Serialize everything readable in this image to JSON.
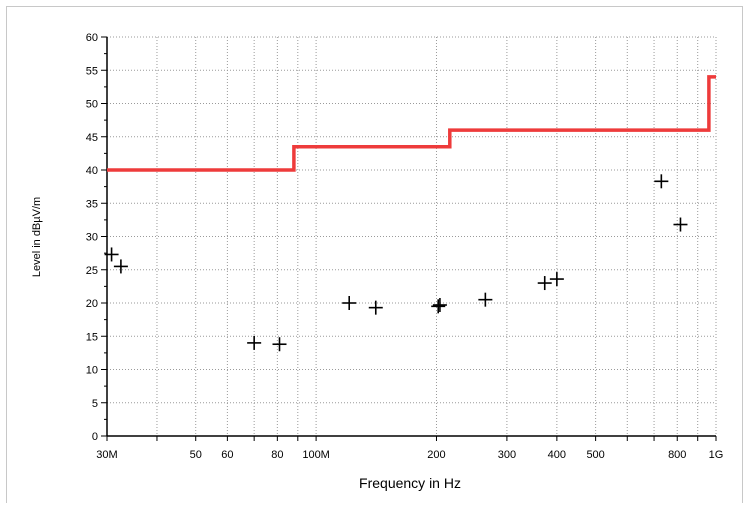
{
  "chart_data": {
    "type": "scatter",
    "title": "",
    "xlabel": "Frequency in Hz",
    "ylabel": "Level in dBµV/m",
    "x_scale": "log",
    "xlim": [
      30000000,
      1000000000
    ],
    "ylim": [
      0,
      60
    ],
    "grid": true,
    "x_tick_labels": [
      {
        "value": 30000000,
        "label": "30M"
      },
      {
        "value": 50000000,
        "label": "50"
      },
      {
        "value": 60000000,
        "label": "60"
      },
      {
        "value": 80000000,
        "label": "80"
      },
      {
        "value": 100000000,
        "label": "100M"
      },
      {
        "value": 200000000,
        "label": "200"
      },
      {
        "value": 300000000,
        "label": "300"
      },
      {
        "value": 400000000,
        "label": "400"
      },
      {
        "value": 500000000,
        "label": "500"
      },
      {
        "value": 800000000,
        "label": "800"
      },
      {
        "value": 1000000000,
        "label": "1G"
      }
    ],
    "y_tick_labels": [
      "0",
      "5",
      "10",
      "15",
      "20",
      "25",
      "30",
      "35",
      "40",
      "45",
      "50",
      "55",
      "60"
    ],
    "limit_line": {
      "color": "#ee3b3b",
      "points": [
        [
          30000000,
          40
        ],
        [
          88000000,
          40
        ],
        [
          88000000,
          43.5
        ],
        [
          216000000,
          43.5
        ],
        [
          216000000,
          46
        ],
        [
          960000000,
          46
        ],
        [
          960000000,
          54
        ],
        [
          1000000000,
          54
        ]
      ]
    },
    "series": [
      {
        "marker": "plus",
        "color": "#000000",
        "x": [
          30800000,
          32500000,
          70000000,
          81000000,
          121000000,
          141000000,
          202000000,
          204000000,
          265000000,
          373000000,
          400000000,
          730000000,
          815000000
        ],
        "y": [
          27.3,
          25.5,
          14.0,
          13.8,
          20.0,
          19.3,
          19.5,
          19.7,
          20.5,
          23.0,
          23.6,
          38.3,
          31.8
        ]
      }
    ]
  }
}
